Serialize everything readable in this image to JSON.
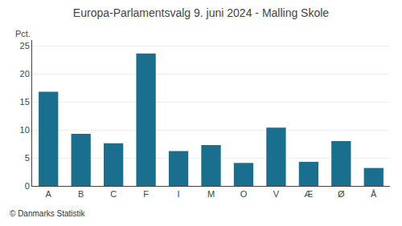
{
  "chart_data": {
    "type": "bar",
    "title": "Europa-Parlamentsvalg 9. juni 2024 - Malling Skole",
    "categories": [
      "A",
      "B",
      "C",
      "F",
      "I",
      "M",
      "O",
      "V",
      "Æ",
      "Ø",
      "Å"
    ],
    "values": [
      16.8,
      9.3,
      7.6,
      23.6,
      6.2,
      7.3,
      4.1,
      10.4,
      4.3,
      8.0,
      3.2
    ],
    "color": "#1a6e8e",
    "ylim": [
      0,
      26
    ],
    "yticks": [
      0,
      5,
      10,
      15,
      20,
      25
    ],
    "grid": true,
    "ylabel": "Pct.",
    "annotations": [
      "© Danmarks Statistik"
    ]
  }
}
